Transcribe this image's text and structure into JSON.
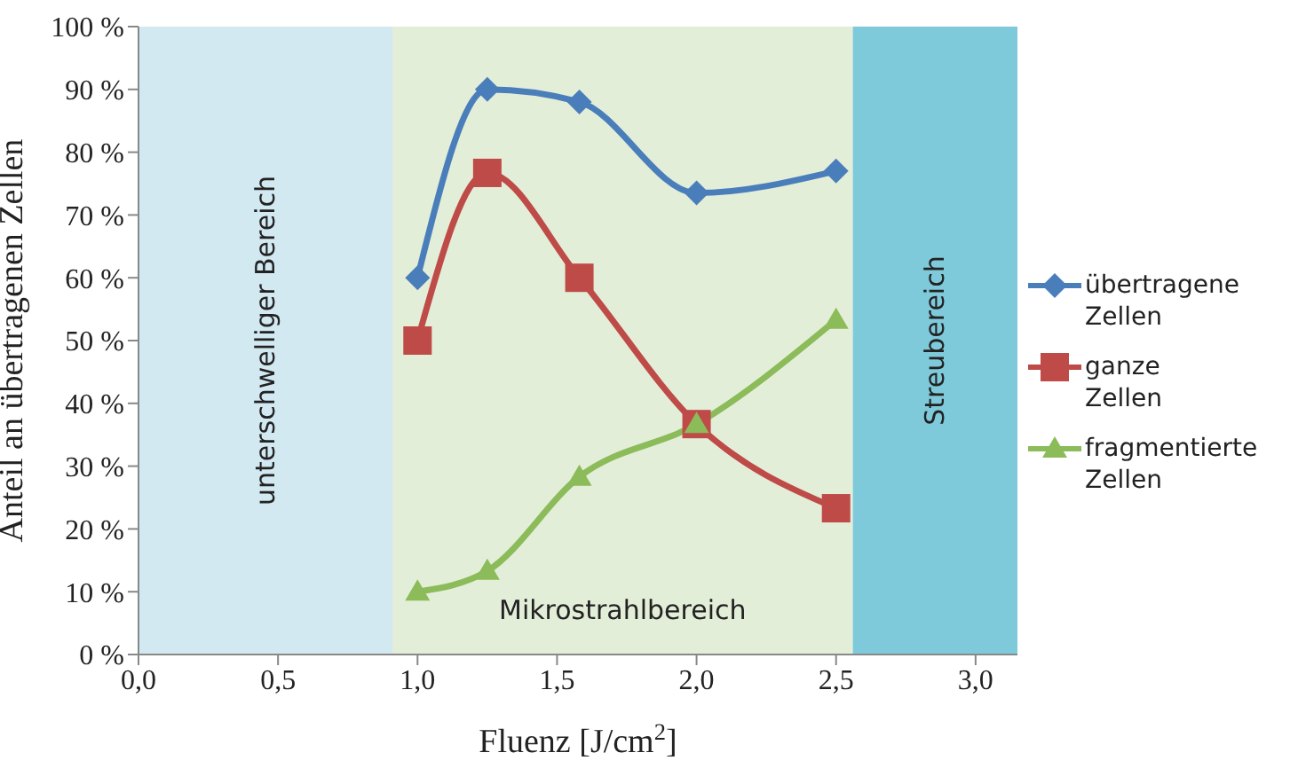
{
  "chart_data": {
    "type": "line",
    "xlabel": "Fluenz [J/cm$^{2}$]",
    "ylabel": "Anteil an übertragenen Zellen",
    "x": [
      1.0,
      1.25,
      1.58,
      2.0,
      2.5
    ],
    "series": [
      {
        "name": "übertragene Zellen",
        "color": "#4a7ebb",
        "marker": "diamond",
        "values": [
          60,
          90,
          88,
          73.5,
          77
        ]
      },
      {
        "name": "ganze Zellen",
        "color": "#be4b48",
        "marker": "square",
        "values": [
          50,
          76.7,
          60,
          36.7,
          23.3
        ]
      },
      {
        "name": "fragmentierte Zellen",
        "color": "#8cbb5a",
        "marker": "triangle",
        "values": [
          10,
          13.3,
          28.3,
          36.7,
          53.3
        ]
      }
    ],
    "xlim": [
      0,
      3.15
    ],
    "xticks": [
      {
        "value": 0,
        "label": "0,0"
      },
      {
        "value": 0.5,
        "label": "0,5"
      },
      {
        "value": 1,
        "label": "1,0"
      },
      {
        "value": 1.5,
        "label": "1,5"
      },
      {
        "value": 2,
        "label": "2,0"
      },
      {
        "value": 2.5,
        "label": "2,5"
      },
      {
        "value": 3,
        "label": "3,0"
      }
    ],
    "ylim": [
      0,
      100
    ],
    "yticks": [
      {
        "value": 0,
        "label": "0 %"
      },
      {
        "value": 10,
        "label": "10 %"
      },
      {
        "value": 20,
        "label": "20 %"
      },
      {
        "value": 30,
        "label": "30 %"
      },
      {
        "value": 40,
        "label": "40 %"
      },
      {
        "value": 50,
        "label": "50 %"
      },
      {
        "value": 60,
        "label": "60 %"
      },
      {
        "value": 70,
        "label": "70 %"
      },
      {
        "value": 80,
        "label": "80 %"
      },
      {
        "value": 90,
        "label": "90 %"
      },
      {
        "value": 100,
        "label": "100 %"
      }
    ],
    "bands": [
      {
        "axis": "x",
        "from": 0,
        "to": 0.91,
        "label": "unterschwelliger Bereich",
        "color": "#d2e9f2"
      },
      {
        "axis": "x",
        "from": 0.91,
        "to": 2.56,
        "label": "Mikrostrahlbereich",
        "color": "#e3eed8"
      },
      {
        "axis": "x",
        "from": 2.56,
        "to": 3.15,
        "label": "Streubereich",
        "color": "#7ecadb"
      }
    ],
    "grid": false,
    "legend": "right",
    "line_style": "solid"
  }
}
